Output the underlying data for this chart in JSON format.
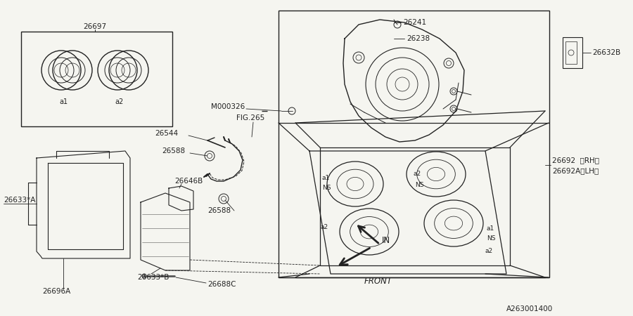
{
  "bg_color": "#f5f5f0",
  "line_color": "#222222",
  "text_color": "#222222",
  "diagram_code": "A263001400",
  "figsize": [
    9.0,
    4.5
  ],
  "dpi": 100,
  "xlim": [
    0,
    900
  ],
  "ylim": [
    0,
    450
  ]
}
